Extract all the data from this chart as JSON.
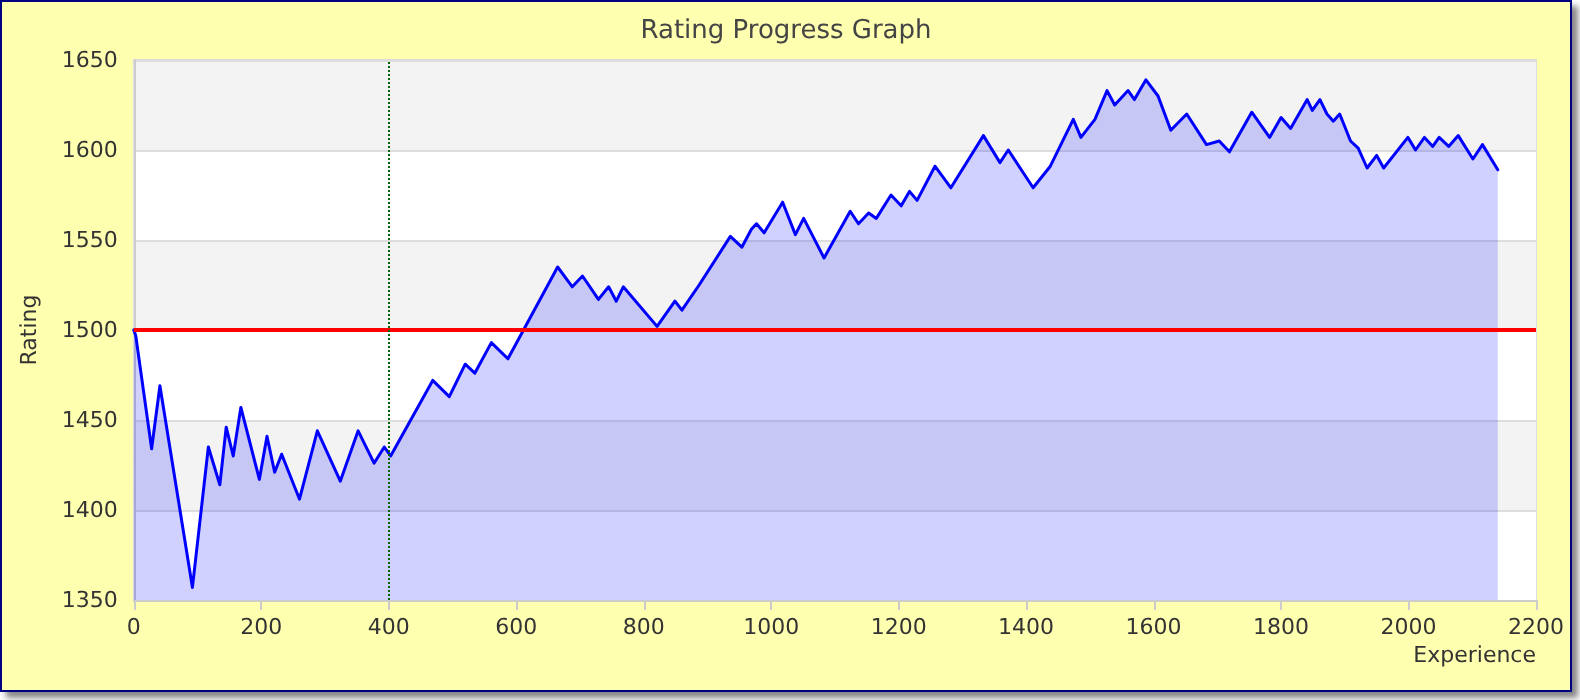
{
  "chart_data": {
    "type": "area",
    "title": "Rating Progress Graph",
    "xlabel": "Experience",
    "ylabel": "Rating",
    "x": [
      0,
      3,
      28,
      41,
      92,
      117,
      135,
      145,
      156,
      168,
      197,
      209,
      221,
      232,
      260,
      288,
      324,
      352,
      377,
      393,
      403,
      469,
      495,
      520,
      535,
      561,
      587,
      665,
      688,
      704,
      729,
      745,
      757,
      768,
      821,
      849,
      860,
      887,
      936,
      954,
      969,
      977,
      989,
      1018,
      1038,
      1051,
      1083,
      1124,
      1137,
      1153,
      1165,
      1188,
      1204,
      1217,
      1229,
      1257,
      1282,
      1333,
      1359,
      1372,
      1411,
      1438,
      1474,
      1486,
      1508,
      1527,
      1539,
      1560,
      1570,
      1588,
      1607,
      1627,
      1652,
      1683,
      1703,
      1719,
      1754,
      1782,
      1800,
      1815,
      1841,
      1849,
      1861,
      1872,
      1882,
      1892,
      1909,
      1921,
      1935,
      1950,
      1961,
      1999,
      2011,
      2025,
      2038,
      2048,
      2063,
      2078,
      2101,
      2116,
      2140
    ],
    "values": [
      1500,
      1497,
      1434,
      1469,
      1357,
      1435,
      1414,
      1446,
      1430,
      1457,
      1417,
      1441,
      1421,
      1431,
      1406,
      1444,
      1416,
      1444,
      1426,
      1435,
      1430,
      1472,
      1463,
      1481,
      1476,
      1493,
      1484,
      1535,
      1524,
      1530,
      1517,
      1524,
      1516,
      1524,
      1502,
      1516,
      1511,
      1525,
      1552,
      1546,
      1556,
      1559,
      1554,
      1571,
      1553,
      1562,
      1540,
      1566,
      1559,
      1565,
      1562,
      1575,
      1569,
      1577,
      1572,
      1591,
      1579,
      1608,
      1593,
      1600,
      1579,
      1591,
      1617,
      1607,
      1617,
      1633,
      1625,
      1633,
      1628,
      1639,
      1630,
      1611,
      1620,
      1603,
      1605,
      1599,
      1621,
      1607,
      1618,
      1612,
      1628,
      1622,
      1628,
      1620,
      1616,
      1620,
      1605,
      1601,
      1590,
      1597,
      1590,
      1607,
      1600,
      1607,
      1602,
      1607,
      1602,
      1608,
      1595,
      1603,
      1589
    ],
    "color": "#0000ff",
    "xlim": [
      0,
      2200
    ],
    "xticks": [
      0,
      200,
      400,
      600,
      800,
      1000,
      1200,
      1400,
      1600,
      1800,
      2000,
      2200
    ],
    "ylim": [
      1350,
      1650
    ],
    "yticks": [
      1350,
      1400,
      1450,
      1500,
      1550,
      1600,
      1650
    ],
    "grid": "y",
    "marker": "none",
    "line_style": "solid",
    "ref_lines": [
      {
        "axis": "y",
        "value": 1500,
        "color": "#ff0000",
        "line_style": "solid"
      },
      {
        "axis": "x",
        "value": 400,
        "color": "#006600",
        "line_style": "dotted"
      }
    ]
  }
}
